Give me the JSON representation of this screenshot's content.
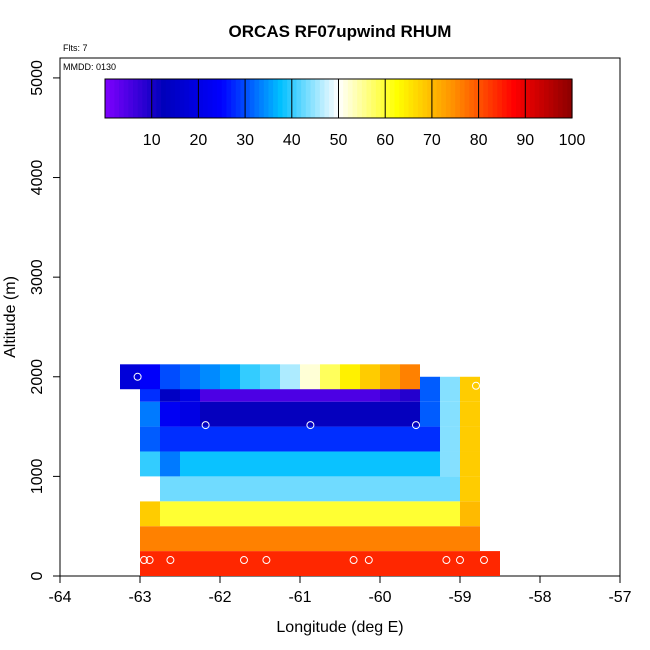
{
  "chart_data": {
    "type": "heatmap",
    "title": "ORCAS RF07upwind RHUM",
    "xlabel": "Longitude (deg E)",
    "ylabel": "Altitude (m)",
    "xlim": [
      -64,
      -57
    ],
    "ylim": [
      0,
      5200
    ],
    "x_ticks": [
      -64,
      -63,
      -62,
      -61,
      -60,
      -59,
      -58,
      -57
    ],
    "x_tick_labels": [
      "-64",
      "-63",
      "-62",
      "-61",
      "-60",
      "-59",
      "-58",
      "-57"
    ],
    "y_ticks": [
      0,
      1000,
      2000,
      3000,
      4000,
      5000
    ],
    "y_tick_labels": [
      "0",
      "1000",
      "2000",
      "3000",
      "4000",
      "5000"
    ],
    "flights_note": "Flts: 7",
    "date_note": "MMDD: 0130",
    "colorbar": {
      "range": [
        0,
        100
      ],
      "ticks": [
        10,
        20,
        30,
        40,
        50,
        60,
        70,
        80,
        90,
        100
      ],
      "tick_labels": [
        "10",
        "20",
        "30",
        "40",
        "50",
        "60",
        "70",
        "80",
        "90",
        "100"
      ],
      "color_stops": [
        "#7f00ff",
        "#0000bb",
        "#0000ff",
        "#00bfff",
        "#ffffff",
        "#ffff00",
        "#ff8c00",
        "#ff0000",
        "#8b0000"
      ]
    },
    "x_bin_width": 0.25,
    "y_bin_height": 250,
    "cells": [
      {
        "y": 0,
        "x0": -63.0,
        "values": [
          84,
          84,
          84,
          84,
          84,
          84,
          84,
          84,
          84,
          84,
          84,
          84,
          84,
          84,
          84,
          84,
          84,
          84
        ]
      },
      {
        "y": 250,
        "x0": -63.0,
        "values": [
          76,
          76,
          76,
          76,
          76,
          76,
          76,
          76,
          76,
          76,
          76,
          76,
          76,
          76,
          76,
          76,
          76
        ]
      },
      {
        "y": 500,
        "x0": -63.0,
        "values": [
          68,
          60,
          60,
          60,
          60,
          60,
          60,
          60,
          60,
          60,
          60,
          60,
          60,
          60,
          60,
          60,
          70
        ]
      },
      {
        "y": 750,
        "x0": -63.0,
        "values": [
          50,
          43,
          43,
          43,
          43,
          43,
          43,
          43,
          43,
          43,
          43,
          43,
          43,
          43,
          43,
          43,
          68
        ]
      },
      {
        "y": 1000,
        "x0": -63.0,
        "values": [
          40,
          33,
          38,
          38,
          38,
          38,
          38,
          38,
          38,
          38,
          38,
          38,
          38,
          38,
          38,
          44,
          68
        ]
      },
      {
        "y": 1250,
        "x0": -63.0,
        "values": [
          31,
          28,
          28,
          28,
          28,
          28,
          28,
          28,
          28,
          28,
          28,
          28,
          28,
          28,
          28,
          44,
          68
        ]
      },
      {
        "y": 1500,
        "x0": -63.0,
        "values": [
          33,
          23,
          20,
          12,
          12,
          12,
          12,
          12,
          12,
          12,
          12,
          12,
          12,
          12,
          31,
          44,
          68
        ]
      },
      {
        "y": 1750,
        "x0": -63.0,
        "values": [
          28,
          14,
          20,
          5,
          5,
          5,
          5,
          5,
          5,
          5,
          5,
          5,
          7,
          9,
          31,
          44,
          68
        ]
      },
      {
        "y": 1875,
        "x0": -63.25,
        "values": [
          18,
          24,
          30,
          32,
          34,
          36,
          40,
          42,
          46,
          52,
          58,
          64,
          68,
          72,
          76
        ]
      }
    ],
    "markers": [
      {
        "x": -62.95,
        "y": 160
      },
      {
        "x": -62.88,
        "y": 160
      },
      {
        "x": -62.62,
        "y": 160
      },
      {
        "x": -61.7,
        "y": 160
      },
      {
        "x": -61.42,
        "y": 160
      },
      {
        "x": -60.33,
        "y": 160
      },
      {
        "x": -60.14,
        "y": 160
      },
      {
        "x": -59.17,
        "y": 160
      },
      {
        "x": -59.0,
        "y": 160
      },
      {
        "x": -58.7,
        "y": 160
      },
      {
        "x": -62.18,
        "y": 1515
      },
      {
        "x": -60.87,
        "y": 1515
      },
      {
        "x": -59.55,
        "y": 1515
      },
      {
        "x": -63.03,
        "y": 2000
      },
      {
        "x": -58.8,
        "y": 1910
      }
    ]
  }
}
